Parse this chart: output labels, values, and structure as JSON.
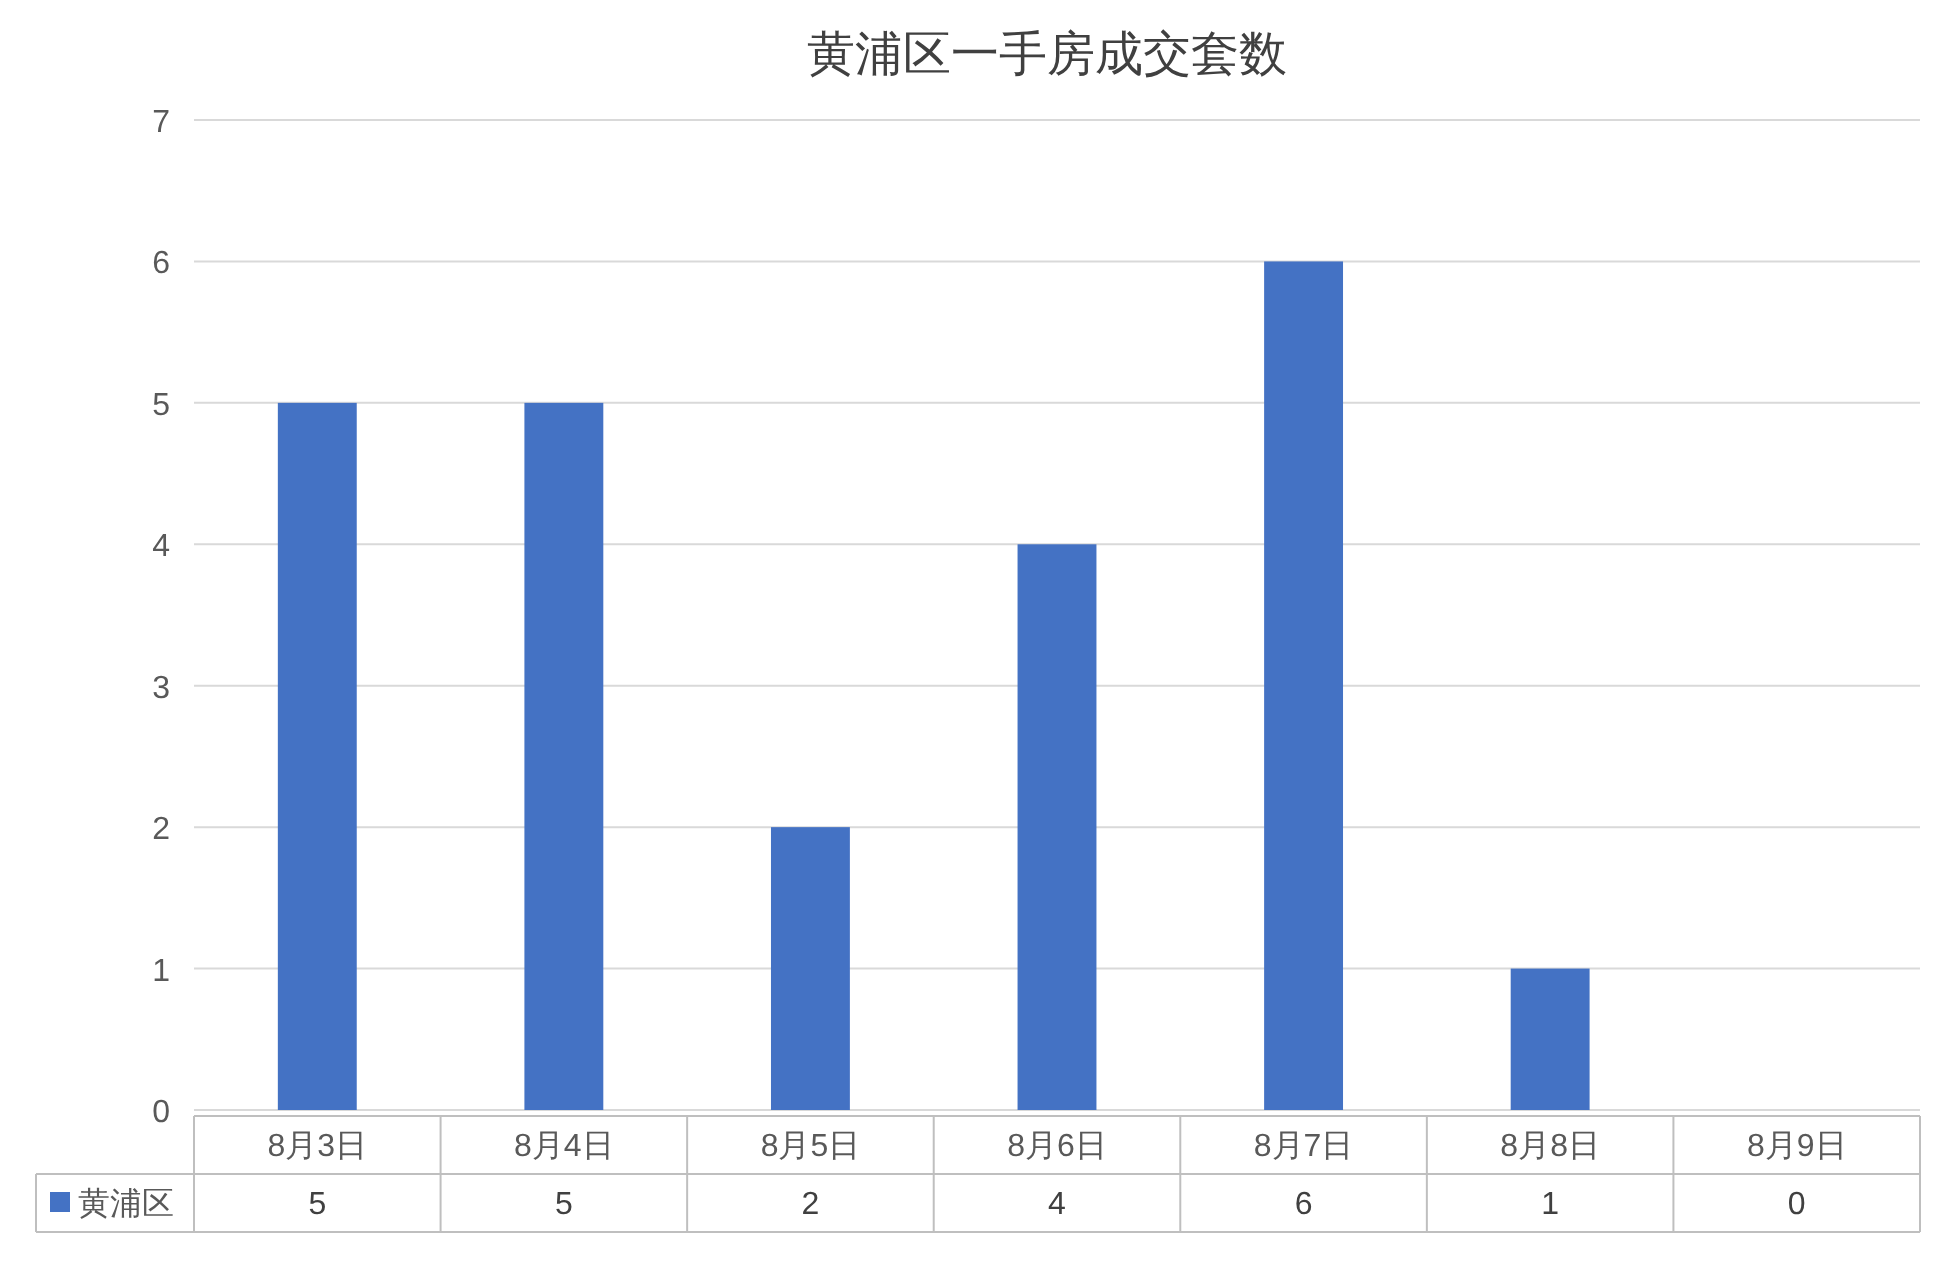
{
  "chart_data": {
    "type": "bar",
    "title": "黄浦区一手房成交套数",
    "categories": [
      "8月3日",
      "8月4日",
      "8月5日",
      "8月6日",
      "8月7日",
      "8月8日",
      "8月9日"
    ],
    "series": [
      {
        "name": "黄浦区",
        "color": "#4472c4",
        "values": [
          5,
          5,
          2,
          4,
          6,
          1,
          0
        ]
      }
    ],
    "ylim": [
      0,
      7
    ],
    "yticks": [
      0,
      1,
      2,
      3,
      4,
      5,
      6,
      7
    ],
    "grid": "y",
    "data_labels": true,
    "legend": "bottom"
  }
}
